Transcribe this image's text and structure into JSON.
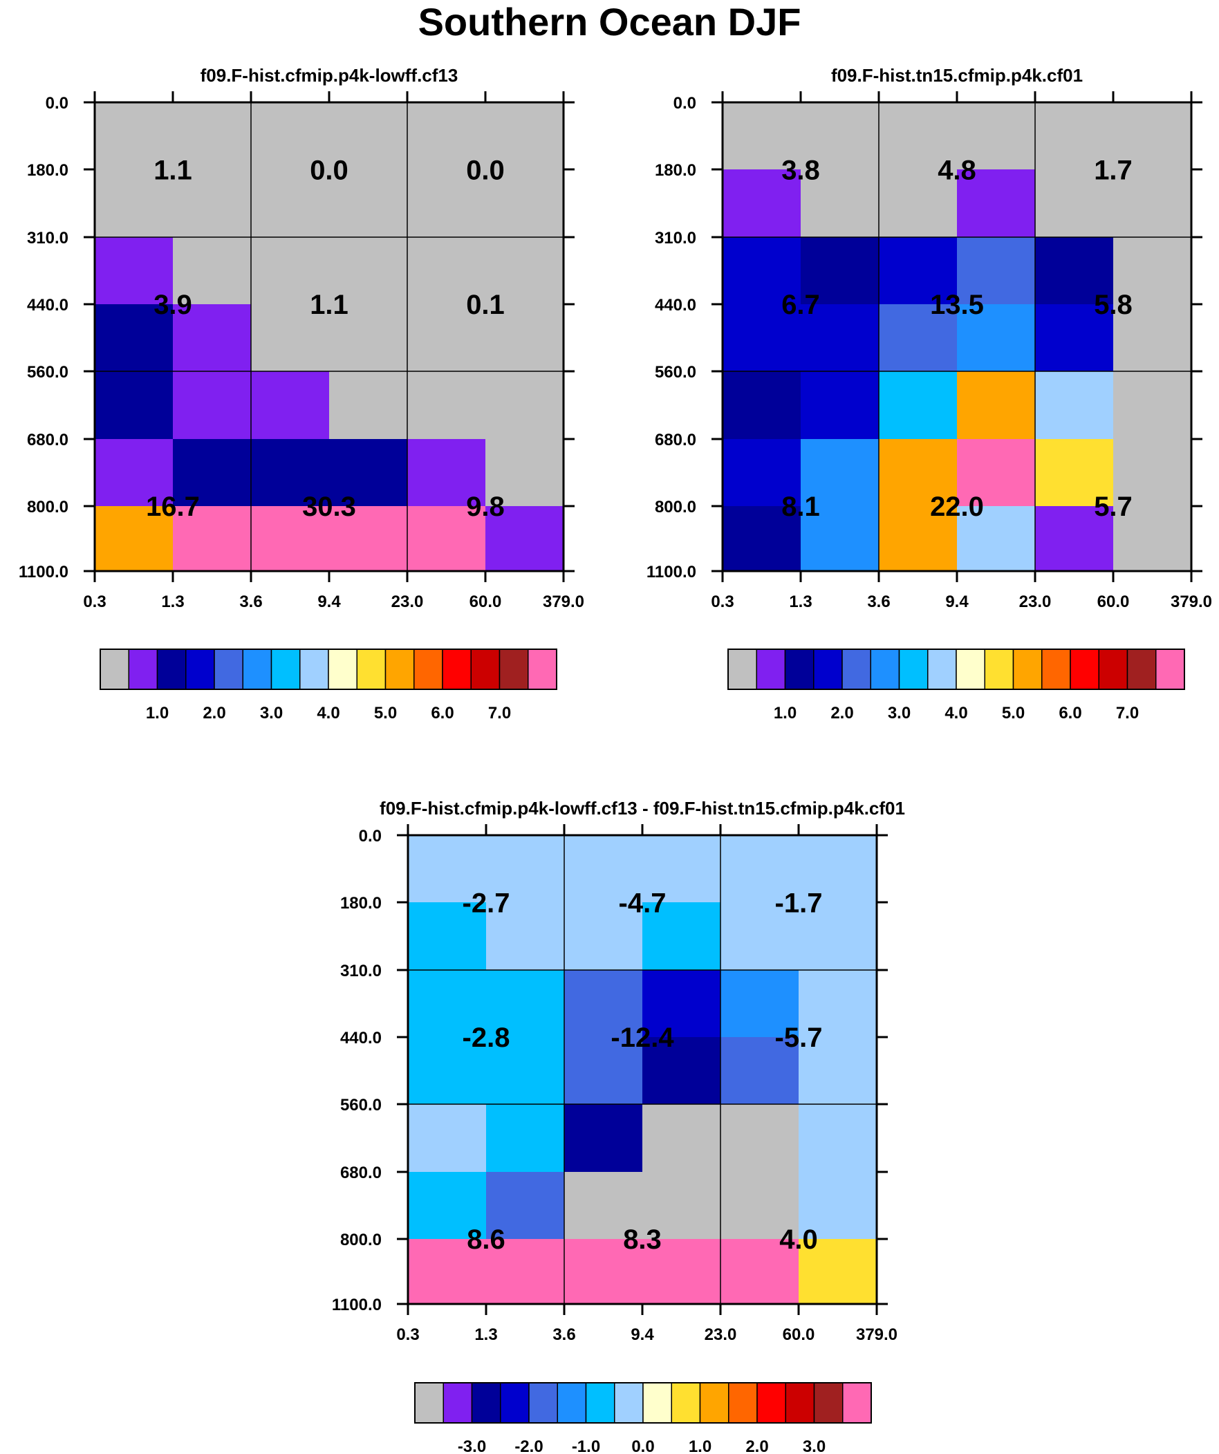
{
  "title": "Southern Ocean DJF",
  "colors": {
    "levels": [
      "#c0c0c0",
      "#8020f0",
      "#000099",
      "#0000cd",
      "#4169e1",
      "#1e90ff",
      "#00bfff",
      "#a0d0ff",
      "#ffffcc",
      "#ffe030",
      "#ffa500",
      "#ff6600",
      "#ff0000",
      "#cc0000",
      "#a02020",
      "#ff69b4"
    ]
  },
  "chart_data": [
    {
      "type": "heatmap",
      "title": "f09.F-hist.cfmip.p4k-lowff.cf13",
      "x_ticks": [
        "0.3",
        "1.3",
        "3.6",
        "9.4",
        "23.0",
        "60.0",
        "379.0"
      ],
      "y_ticks": [
        "0.0",
        "180.0",
        "310.0",
        "440.0",
        "560.0",
        "680.0",
        "800.0",
        "1100.0"
      ],
      "cell_levels": [
        [
          0,
          0,
          0,
          0,
          0,
          0
        ],
        [
          0,
          0,
          0,
          0,
          0,
          0
        ],
        [
          1,
          0,
          0,
          0,
          0,
          0
        ],
        [
          2,
          1,
          0,
          0,
          0,
          0
        ],
        [
          2,
          1,
          1,
          0,
          0,
          0
        ],
        [
          1,
          2,
          2,
          2,
          1,
          0
        ],
        [
          10,
          15,
          15,
          15,
          15,
          1
        ]
      ],
      "cell_labels": [
        "1.1",
        "0.0",
        "0.0",
        "3.9",
        "1.1",
        "0.1",
        "16.7",
        "30.3",
        "9.8"
      ],
      "colorbar_labels": [
        "1.0",
        "2.0",
        "3.0",
        "4.0",
        "5.0",
        "6.0",
        "7.0"
      ]
    },
    {
      "type": "heatmap",
      "title": "f09.F-hist.tn15.cfmip.p4k.cf01",
      "x_ticks": [
        "0.3",
        "1.3",
        "3.6",
        "9.4",
        "23.0",
        "60.0",
        "379.0"
      ],
      "y_ticks": [
        "0.0",
        "180.0",
        "310.0",
        "440.0",
        "560.0",
        "680.0",
        "800.0",
        "1100.0"
      ],
      "cell_levels": [
        [
          0,
          0,
          0,
          0,
          0,
          0
        ],
        [
          1,
          0,
          0,
          1,
          0,
          0
        ],
        [
          3,
          2,
          3,
          4,
          2,
          0
        ],
        [
          3,
          3,
          4,
          5,
          3,
          0
        ],
        [
          2,
          3,
          6,
          10,
          7,
          0
        ],
        [
          3,
          5,
          10,
          15,
          9,
          0
        ],
        [
          2,
          5,
          10,
          7,
          1,
          0
        ]
      ],
      "cell_labels": [
        "3.8",
        "4.8",
        "1.7",
        "6.7",
        "13.5",
        "5.8",
        "8.1",
        "22.0",
        "5.7"
      ],
      "colorbar_labels": [
        "1.0",
        "2.0",
        "3.0",
        "4.0",
        "5.0",
        "6.0",
        "7.0"
      ]
    },
    {
      "type": "heatmap",
      "title": "f09.F-hist.cfmip.p4k-lowff.cf13 - f09.F-hist.tn15.cfmip.p4k.cf01",
      "x_ticks": [
        "0.3",
        "1.3",
        "3.6",
        "9.4",
        "23.0",
        "60.0",
        "379.0"
      ],
      "y_ticks": [
        "0.0",
        "180.0",
        "310.0",
        "440.0",
        "560.0",
        "680.0",
        "800.0",
        "1100.0"
      ],
      "cell_levels": [
        [
          7,
          7,
          7,
          7,
          7,
          7
        ],
        [
          6,
          7,
          7,
          6,
          7,
          7
        ],
        [
          6,
          6,
          4,
          3,
          5,
          7
        ],
        [
          6,
          6,
          4,
          2,
          4,
          7
        ],
        [
          7,
          6,
          2,
          0,
          0,
          7
        ],
        [
          6,
          4,
          0,
          0,
          0,
          7
        ],
        [
          15,
          15,
          15,
          15,
          15,
          9
        ]
      ],
      "cell_labels": [
        "-2.7",
        "-4.7",
        "-1.7",
        "-2.8",
        "-12.4",
        "-5.7",
        "8.6",
        "8.3",
        "4.0"
      ],
      "colorbar_labels": [
        "-3.0",
        "-2.0",
        "-1.0",
        "0.0",
        "1.0",
        "2.0",
        "3.0"
      ]
    }
  ]
}
